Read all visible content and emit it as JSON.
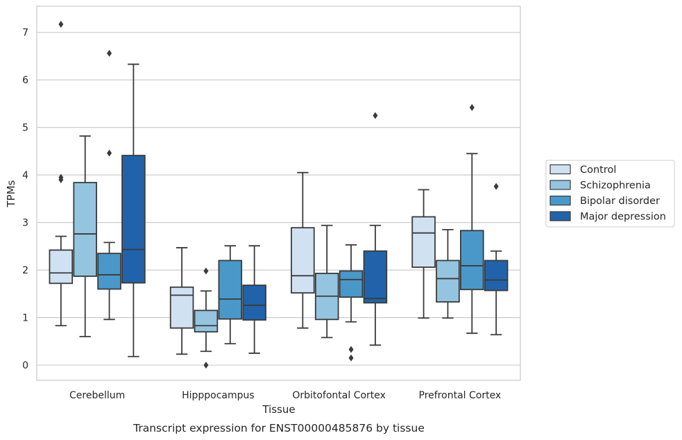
{
  "chart_data": {
    "type": "box",
    "xlabel": "Tissue",
    "ylabel": "TPMs",
    "caption": "Transcript expression for ENST00000485876 by tissue",
    "ylim": [
      -0.32,
      7.55
    ],
    "yticks": [
      0,
      1,
      2,
      3,
      4,
      5,
      6,
      7
    ],
    "grid": "horizontal",
    "legend_position": "right",
    "categories": [
      "Cerebellum",
      "Hipppocampus",
      "Orbitofontal Cortex",
      "Prefrontal Cortex"
    ],
    "series": [
      {
        "name": "Control",
        "color": "#d0e1f2",
        "boxes": [
          {
            "whislo": 0.83,
            "q1": 1.72,
            "med": 1.94,
            "q3": 2.42,
            "whishi": 2.71,
            "fliers": [
              3.95,
              3.9,
              7.17
            ]
          },
          {
            "whislo": 0.23,
            "q1": 0.78,
            "med": 1.47,
            "q3": 1.64,
            "whishi": 2.47,
            "fliers": []
          },
          {
            "whislo": 0.78,
            "q1": 1.52,
            "med": 1.88,
            "q3": 2.89,
            "whishi": 4.05,
            "fliers": []
          },
          {
            "whislo": 0.99,
            "q1": 2.06,
            "med": 2.78,
            "q3": 3.12,
            "whishi": 3.69,
            "fliers": []
          }
        ]
      },
      {
        "name": "Schizophrenia",
        "color": "#94c4df",
        "boxes": [
          {
            "whislo": 0.6,
            "q1": 1.87,
            "med": 2.76,
            "q3": 3.84,
            "whishi": 4.82,
            "fliers": []
          },
          {
            "whislo": 0.29,
            "q1": 0.7,
            "med": 0.83,
            "q3": 1.15,
            "whishi": 1.56,
            "fliers": [
              1.98,
              0.0
            ]
          },
          {
            "whislo": 0.58,
            "q1": 0.96,
            "med": 1.45,
            "q3": 1.93,
            "whishi": 2.94,
            "fliers": []
          },
          {
            "whislo": 0.99,
            "q1": 1.33,
            "med": 1.82,
            "q3": 2.2,
            "whishi": 2.85,
            "fliers": []
          }
        ]
      },
      {
        "name": "Bipolar disorder",
        "color": "#4a98c9",
        "boxes": [
          {
            "whislo": 0.96,
            "q1": 1.6,
            "med": 1.9,
            "q3": 2.35,
            "whishi": 2.58,
            "fliers": [
              4.46,
              6.56
            ]
          },
          {
            "whislo": 0.45,
            "q1": 0.97,
            "med": 1.39,
            "q3": 2.2,
            "whishi": 2.51,
            "fliers": []
          },
          {
            "whislo": 0.91,
            "q1": 1.43,
            "med": 1.8,
            "q3": 1.98,
            "whishi": 2.53,
            "fliers": [
              0.33,
              0.15
            ]
          },
          {
            "whislo": 0.67,
            "q1": 1.59,
            "med": 2.09,
            "q3": 2.83,
            "whishi": 4.45,
            "fliers": [
              5.42
            ]
          }
        ]
      },
      {
        "name": "Major depression",
        "color": "#2163aa",
        "boxes": [
          {
            "whislo": 0.18,
            "q1": 1.73,
            "med": 2.43,
            "q3": 4.41,
            "whishi": 6.33,
            "fliers": []
          },
          {
            "whislo": 0.25,
            "q1": 0.95,
            "med": 1.26,
            "q3": 1.68,
            "whishi": 2.51,
            "fliers": []
          },
          {
            "whislo": 0.42,
            "q1": 1.31,
            "med": 1.4,
            "q3": 2.4,
            "whishi": 2.94,
            "fliers": [
              5.25
            ]
          },
          {
            "whislo": 0.64,
            "q1": 1.57,
            "med": 1.79,
            "q3": 2.2,
            "whishi": 2.4,
            "fliers": [
              3.76
            ]
          }
        ]
      }
    ]
  }
}
